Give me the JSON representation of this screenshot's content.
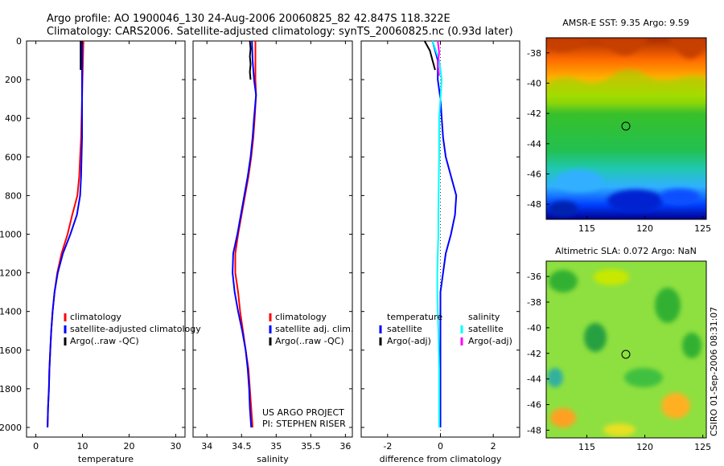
{
  "header": {
    "title_line1": "Argo profile: AO 1900046_130 24-Aug-2006 20060825_82 42.847S 118.322E",
    "title_line2": "Climatology: CARS2006. Satellite-adjusted climatology: synTS_20060825.nc (0.93d later)"
  },
  "colors": {
    "climatology": "#ff0000",
    "satellite": "#0000ff",
    "argo": "#000000",
    "sat_salinity": "#00ffff",
    "argo_salinity": "#ff00ff"
  },
  "chart_data": [
    {
      "type": "line",
      "id": "temperature",
      "xlabel": "temperature",
      "ylabel": "",
      "xlim": [
        -2,
        32
      ],
      "ylim": [
        2050,
        0
      ],
      "xticks": [
        0,
        10,
        20,
        30
      ],
      "yticks": [
        0,
        200,
        400,
        600,
        800,
        1000,
        1200,
        1400,
        1600,
        1800,
        2000
      ],
      "legend": {
        "position": "lower-middle",
        "entries": [
          "climatology",
          "satellite-adjusted climatology",
          "Argo(..raw -QC)"
        ]
      },
      "series": [
        {
          "name": "climatology",
          "color": "#ff0000",
          "points": [
            [
              10.2,
              0
            ],
            [
              10.1,
              100
            ],
            [
              10.0,
              200
            ],
            [
              9.9,
              300
            ],
            [
              9.8,
              400
            ],
            [
              9.7,
              500
            ],
            [
              9.5,
              600
            ],
            [
              9.3,
              700
            ],
            [
              8.9,
              800
            ],
            [
              7.8,
              900
            ],
            [
              6.8,
              1000
            ],
            [
              5.5,
              1100
            ],
            [
              4.6,
              1200
            ],
            [
              4.0,
              1300
            ],
            [
              3.6,
              1400
            ],
            [
              3.3,
              1500
            ],
            [
              3.1,
              1600
            ],
            [
              2.9,
              1700
            ],
            [
              2.8,
              1800
            ],
            [
              2.6,
              1900
            ],
            [
              2.5,
              2000
            ]
          ]
        },
        {
          "name": "satellite-adjusted climatology",
          "color": "#0000ff",
          "points": [
            [
              9.9,
              0
            ],
            [
              9.9,
              100
            ],
            [
              9.9,
              200
            ],
            [
              9.9,
              300
            ],
            [
              9.9,
              400
            ],
            [
              9.9,
              500
            ],
            [
              9.8,
              600
            ],
            [
              9.7,
              700
            ],
            [
              9.5,
              800
            ],
            [
              8.8,
              900
            ],
            [
              7.4,
              1000
            ],
            [
              5.8,
              1100
            ],
            [
              4.7,
              1200
            ],
            [
              4.0,
              1300
            ],
            [
              3.6,
              1400
            ],
            [
              3.3,
              1500
            ],
            [
              3.1,
              1600
            ],
            [
              2.9,
              1700
            ],
            [
              2.8,
              1800
            ],
            [
              2.6,
              1900
            ],
            [
              2.5,
              2000
            ]
          ]
        },
        {
          "name": "Argo(..raw -QC)",
          "color": "#000000",
          "points": [
            [
              9.6,
              0
            ],
            [
              9.6,
              50
            ],
            [
              9.6,
              100
            ],
            [
              9.6,
              150
            ]
          ]
        }
      ]
    },
    {
      "type": "line",
      "id": "salinity",
      "xlabel": "salinity",
      "ylabel": "",
      "xlim": [
        33.8,
        36.1
      ],
      "ylim": [
        2050,
        0
      ],
      "xticks": [
        34,
        34.5,
        35,
        35.5,
        36
      ],
      "xticklabels": [
        "34",
        "34.5",
        "35",
        "35.5",
        "36"
      ],
      "legend": {
        "position": "lower-right",
        "entries": [
          "climatology",
          "satellite adj. clim.",
          "Argo(..raw -QC)"
        ]
      },
      "annotations": [
        "US ARGO PROJECT",
        "PI: STEPHEN RISER"
      ],
      "series": [
        {
          "name": "climatology",
          "color": "#ff0000",
          "points": [
            [
              34.7,
              0
            ],
            [
              34.7,
              100
            ],
            [
              34.7,
              200
            ],
            [
              34.71,
              280
            ],
            [
              34.69,
              400
            ],
            [
              34.67,
              500
            ],
            [
              34.64,
              600
            ],
            [
              34.6,
              700
            ],
            [
              34.55,
              800
            ],
            [
              34.5,
              900
            ],
            [
              34.45,
              1000
            ],
            [
              34.41,
              1100
            ],
            [
              34.41,
              1200
            ],
            [
              34.45,
              1300
            ],
            [
              34.48,
              1400
            ],
            [
              34.52,
              1500
            ],
            [
              34.56,
              1600
            ],
            [
              34.6,
              1700
            ],
            [
              34.62,
              1800
            ],
            [
              34.64,
              1900
            ],
            [
              34.66,
              2000
            ]
          ]
        },
        {
          "name": "satellite adj. clim.",
          "color": "#0000ff",
          "points": [
            [
              34.65,
              0
            ],
            [
              34.66,
              100
            ],
            [
              34.68,
              200
            ],
            [
              34.71,
              280
            ],
            [
              34.68,
              400
            ],
            [
              34.66,
              500
            ],
            [
              34.63,
              600
            ],
            [
              34.59,
              700
            ],
            [
              34.54,
              800
            ],
            [
              34.49,
              900
            ],
            [
              34.44,
              1000
            ],
            [
              34.38,
              1100
            ],
            [
              34.37,
              1200
            ],
            [
              34.4,
              1300
            ],
            [
              34.45,
              1400
            ],
            [
              34.51,
              1500
            ],
            [
              34.56,
              1600
            ],
            [
              34.59,
              1700
            ],
            [
              34.61,
              1800
            ],
            [
              34.62,
              1900
            ],
            [
              34.64,
              2000
            ]
          ]
        },
        {
          "name": "Argo(..raw -QC)",
          "color": "#000000",
          "points": [
            [
              34.62,
              0
            ],
            [
              34.63,
              40
            ],
            [
              34.62,
              80
            ],
            [
              34.63,
              120
            ],
            [
              34.62,
              160
            ],
            [
              34.63,
              200
            ]
          ]
        }
      ]
    },
    {
      "type": "line",
      "id": "difference",
      "xlabel": "difference from climatology",
      "ylabel": "",
      "xlim": [
        -3,
        3
      ],
      "ylim": [
        2050,
        0
      ],
      "xticks": [
        -2,
        0,
        2
      ],
      "legend": {
        "position": "lower-middle",
        "columns": [
          {
            "title": "temperature",
            "entries": [
              "satellite",
              "Argo(-adj)"
            ]
          },
          {
            "title": "salinity",
            "entries": [
              "satellite",
              "Argo(-adj)"
            ]
          }
        ]
      },
      "series": [
        {
          "name": "temperature satellite",
          "color": "#0000ff",
          "points": [
            [
              -0.3,
              0
            ],
            [
              -0.1,
              100
            ],
            [
              -0.1,
              200
            ],
            [
              0.0,
              300
            ],
            [
              0.05,
              400
            ],
            [
              0.1,
              500
            ],
            [
              0.2,
              600
            ],
            [
              0.4,
              700
            ],
            [
              0.6,
              800
            ],
            [
              0.55,
              900
            ],
            [
              0.4,
              1000
            ],
            [
              0.2,
              1100
            ],
            [
              0.1,
              1200
            ],
            [
              0.0,
              1300
            ],
            [
              0.0,
              1400
            ],
            [
              0.0,
              1600
            ],
            [
              0.0,
              1800
            ],
            [
              0.0,
              2000
            ]
          ]
        },
        {
          "name": "temperature Argo(-adj)",
          "color": "#000000",
          "points": [
            [
              -0.6,
              0
            ],
            [
              -0.4,
              50
            ],
            [
              -0.3,
              100
            ],
            [
              -0.2,
              150
            ]
          ]
        },
        {
          "name": "salinity satellite",
          "color": "#00ffff",
          "points": [
            [
              -0.3,
              0
            ],
            [
              -0.05,
              100
            ],
            [
              0.05,
              200
            ],
            [
              0.0,
              300
            ],
            [
              -0.05,
              400
            ],
            [
              -0.05,
              500
            ],
            [
              -0.05,
              600
            ],
            [
              -0.06,
              700
            ],
            [
              -0.07,
              800
            ],
            [
              -0.08,
              900
            ],
            [
              -0.08,
              1000
            ],
            [
              -0.1,
              1100
            ],
            [
              -0.12,
              1200
            ],
            [
              -0.12,
              1300
            ],
            [
              -0.1,
              1400
            ],
            [
              -0.08,
              1500
            ],
            [
              -0.06,
              1600
            ],
            [
              -0.05,
              1700
            ],
            [
              -0.05,
              1800
            ],
            [
              -0.05,
              1900
            ],
            [
              -0.05,
              2000
            ]
          ]
        },
        {
          "name": "salinity Argo(-adj)",
          "color": "#ff00ff",
          "points": [
            [
              -0.1,
              0
            ],
            [
              -0.05,
              60
            ],
            [
              -0.1,
              120
            ],
            [
              -0.05,
              180
            ]
          ]
        }
      ]
    },
    {
      "type": "heatmap",
      "id": "sst_map",
      "title": "AMSR-E SST: 9.35 Argo: 9.59",
      "xlim": [
        111.5,
        125.3
      ],
      "ylim": [
        -49,
        -37
      ],
      "xticks": [
        115,
        120,
        125
      ],
      "yticks": [
        -38,
        -40,
        -42,
        -44,
        -46,
        -48
      ],
      "marker": {
        "lon": 118.3,
        "lat": -42.85
      }
    },
    {
      "type": "heatmap",
      "id": "sla_map",
      "title": "Altimetric SLA: 0.072 Argo: NaN",
      "xlim": [
        111.5,
        125.3
      ],
      "ylim": [
        -48.6,
        -34.8
      ],
      "xticks": [
        115,
        120,
        125
      ],
      "yticks": [
        -36,
        -38,
        -40,
        -42,
        -44,
        -46,
        -48
      ],
      "marker": {
        "lon": 118.3,
        "lat": -42.85
      },
      "side_label": "CSIRO 01-Sep-2006 08:31:07"
    }
  ]
}
